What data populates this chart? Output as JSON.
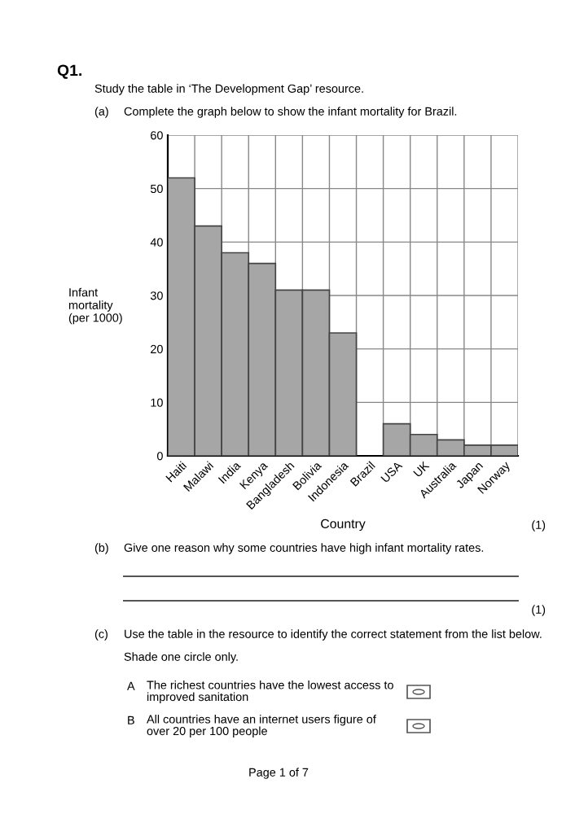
{
  "chart_data": {
    "type": "bar",
    "title": "Q1.",
    "subtitle": "Study the table in ‘The Development Gap’ resource.",
    "xlabel": "Country",
    "ylabel": "Infant\nmortality\n(per 1000)",
    "categories": [
      "Haiti",
      "Malawi",
      "India",
      "Kenya",
      "Bangladesh",
      "Bolivia",
      "Indonesia",
      "Brazil",
      "USA",
      "UK",
      "Australia",
      "Japan",
      "Norway"
    ],
    "values": [
      52,
      43,
      38,
      36,
      31,
      31,
      23,
      null,
      6,
      4,
      3,
      2,
      2
    ],
    "color": "#a6a6a6",
    "ylim": [
      0,
      60
    ],
    "yticks": [
      0,
      10,
      20,
      30,
      40,
      50,
      60
    ],
    "grid": true,
    "annotations": [
      "(a)",
      "Complete the graph below to show the infant mortality for Brazil.",
      "(1)",
      "(b)",
      "Give one reason why some countries have high infant mortality rates.",
      "(1)",
      "(c)",
      "Use the table in the resource to identify the correct statement from the list below.",
      "Shade one circle only.",
      "A",
      "The richest countries have the lowest access to\nimproved sanitation",
      "B",
      "All countries have an internet users figure of\nover 20 per 100 people",
      "Page 1 of 7"
    ]
  }
}
